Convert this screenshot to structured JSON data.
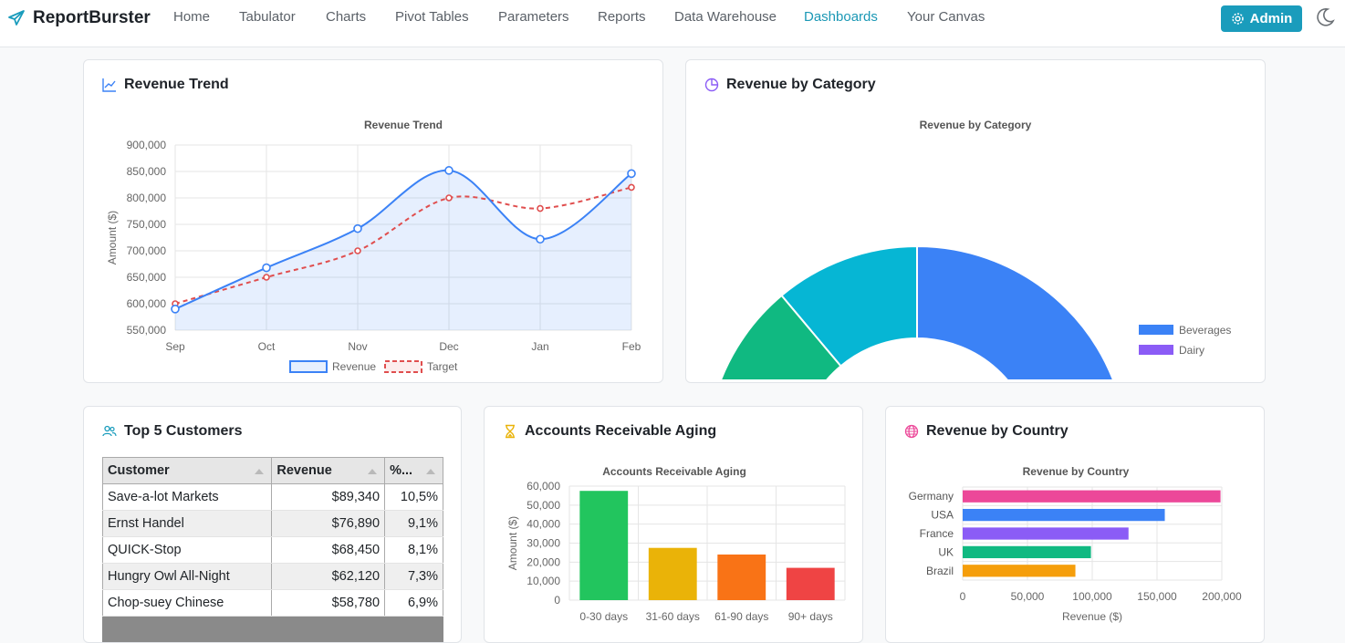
{
  "app": {
    "name": "ReportBurster"
  },
  "nav": {
    "items": [
      "Home",
      "Tabulator",
      "Charts",
      "Pivot Tables",
      "Parameters",
      "Reports",
      "Data Warehouse",
      "Dashboards",
      "Your Canvas"
    ],
    "active": "Dashboards",
    "admin_label": "Admin"
  },
  "colors": {
    "accent": "#1a9cbc",
    "blue": "#3b82f6",
    "red": "#e04e4e",
    "green": "#22c55e",
    "yellow": "#eab308",
    "orange": "#f97316",
    "crimson": "#ef4444",
    "cyan": "#06b6d4",
    "emerald": "#10b981",
    "purple": "#8b5cf6",
    "pink": "#ec4899"
  },
  "cards": {
    "revenue_trend": {
      "title": "Revenue Trend"
    },
    "revenue_category": {
      "title": "Revenue by Category"
    },
    "top_customers": {
      "title": "Top 5 Customers"
    },
    "ar_aging": {
      "title": "Accounts Receivable Aging"
    },
    "revenue_country": {
      "title": "Revenue by Country"
    }
  },
  "customers": {
    "headers": [
      "Customer",
      "Revenue",
      "%..."
    ],
    "rows": [
      {
        "name": "Save-a-lot Markets",
        "revenue": "$89,340",
        "pct": "10,5%"
      },
      {
        "name": "Ernst Handel",
        "revenue": "$76,890",
        "pct": "9,1%"
      },
      {
        "name": "QUICK-Stop",
        "revenue": "$68,450",
        "pct": "8,1%"
      },
      {
        "name": "Hungry Owl All-Night",
        "revenue": "$62,120",
        "pct": "7,3%"
      },
      {
        "name": "Chop-suey Chinese",
        "revenue": "$58,780",
        "pct": "6,9%"
      }
    ]
  },
  "chart_data": [
    {
      "type": "line",
      "title": "Revenue Trend",
      "ylabel": "Amount ($)",
      "categories": [
        "Sep",
        "Oct",
        "Nov",
        "Dec",
        "Jan",
        "Feb"
      ],
      "ylim": [
        550000,
        900000
      ],
      "yticks": [
        "900,000",
        "850,000",
        "800,000",
        "750,000",
        "700,000",
        "650,000",
        "600,000",
        "550,000"
      ],
      "series": [
        {
          "name": "Revenue",
          "values": [
            590000,
            668000,
            742000,
            852000,
            722000,
            846000
          ]
        },
        {
          "name": "Target",
          "values": [
            600000,
            650000,
            700000,
            800000,
            780000,
            820000
          ]
        }
      ],
      "legend_labels": [
        "Revenue",
        "Target"
      ]
    },
    {
      "type": "pie",
      "title": "Revenue by Category",
      "legend": [
        "Beverages",
        "Dairy"
      ],
      "visible_slices": [
        {
          "angle_deg": 90,
          "color": "#3b82f6"
        },
        {
          "angle_deg": 40,
          "color": "#06b6d4"
        },
        {
          "angle_deg": 30,
          "color": "#10b981"
        }
      ]
    },
    {
      "type": "bar",
      "title": "Accounts Receivable Aging",
      "ylabel": "Amount ($)",
      "categories": [
        "0-30 days",
        "31-60 days",
        "61-90 days",
        "90+ days"
      ],
      "values": [
        57500,
        27500,
        24000,
        17000
      ],
      "ylim": [
        0,
        60000
      ],
      "yticks": [
        "60,000",
        "50,000",
        "40,000",
        "30,000",
        "20,000",
        "10,000",
        "0"
      ]
    },
    {
      "type": "bar",
      "title": "Revenue by Country",
      "orientation": "horizontal",
      "xlabel": "Revenue ($)",
      "categories": [
        "Germany",
        "USA",
        "France",
        "UK",
        "Brazil"
      ],
      "values": [
        199000,
        156000,
        128000,
        99000,
        87000
      ],
      "xlim": [
        0,
        200000
      ],
      "xticks": [
        "0",
        "50,000",
        "100,000",
        "150,000",
        "200,000"
      ]
    }
  ]
}
